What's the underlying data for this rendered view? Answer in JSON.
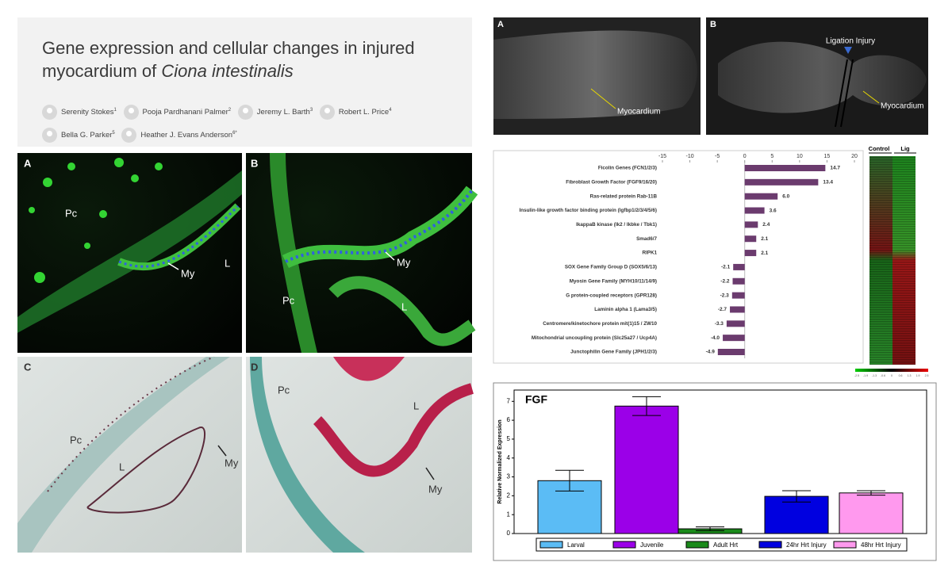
{
  "paper": {
    "title_parts": [
      "Gene expression and cellular changes in injured myocardium of ",
      "Ciona intestinalis"
    ],
    "authors": [
      {
        "name": "Serenity Stokes",
        "affiliation": "1"
      },
      {
        "name": "Pooja Pardhanani Palmer",
        "affiliation": "2"
      },
      {
        "name": "Jeremy L. Barth",
        "affiliation": "3"
      },
      {
        "name": "Robert L. Price",
        "affiliation": "4"
      },
      {
        "name": "Bella G. Parker",
        "affiliation": "5"
      },
      {
        "name": "Heather J. Evans Anderson",
        "affiliation": "6*"
      }
    ]
  },
  "micrographs": [
    {
      "panel": "A",
      "labels": [
        "Pc",
        "My",
        "L"
      ]
    },
    {
      "panel": "B",
      "labels": [
        "My",
        "Pc",
        "L"
      ]
    },
    {
      "panel": "C",
      "labels": [
        "Pc",
        "L",
        "My"
      ]
    },
    {
      "panel": "D",
      "labels": [
        "Pc",
        "L",
        "My"
      ]
    }
  ],
  "photos": [
    {
      "panel": "A",
      "labels": [
        "Myocardium"
      ]
    },
    {
      "panel": "B",
      "labels": [
        "Ligation Injury",
        "Myocardium"
      ]
    }
  ],
  "heatmap": {
    "columns": [
      "Control",
      "Lig"
    ],
    "colorbar_ticks": [
      "-2.5",
      "-1.9",
      "-1.3",
      "-0.6",
      "0",
      "0.6",
      "1.3",
      "1.9",
      "2.5"
    ]
  },
  "chart_data": [
    {
      "type": "hbar",
      "categories": [
        "Ficolin Genes (FCN1/2/3)",
        "Fibroblast Growth Factor (FGF9/16/20)",
        "Ras-related protein Rab-11B",
        "Insulin-like growth factor binding protein (Igfbp1/2/3/4/5/6)",
        "IkappaB kinase (Ik2 / Ikbke / Tbk1)",
        "Smad6/7",
        "RIPK1",
        "SOX Gene Family Group D (SOX5/6/13)",
        "Myosin Gene Family (MYH10/11/14/9)",
        "G protein-coupled receptors (GPR128)",
        "Laminin alpha 1 (Lama3/5)",
        "Centromere/kinetochore protein mit(1)15 / ZW10",
        "Mitochondrial uncoupling protein (Slc25a27 / Ucp4A)",
        "Junctophilin Gene Family (JPH1/2/3)"
      ],
      "values": [
        14.7,
        13.4,
        6.0,
        3.6,
        2.4,
        2.1,
        2.1,
        -2.1,
        -2.2,
        -2.3,
        -2.7,
        -3.3,
        -4.0,
        -4.9
      ],
      "value_labels": [
        "14.7",
        "13.4",
        "6.0",
        "3.6",
        "2.4",
        "2.1",
        "2.1",
        "-2.1",
        "-2.2",
        "-2.3",
        "-2.7",
        "-3.3",
        "-4.0",
        "-4.9"
      ],
      "color": "#6b3b6e",
      "xlim": [
        -15,
        20
      ],
      "xticks": [
        -15,
        -10,
        -5,
        0,
        5,
        10,
        15,
        20
      ]
    },
    {
      "type": "bar",
      "title": "FGF",
      "ylabel": "Relative Normalized Expression",
      "categories": [
        "Larval",
        "Juvenile",
        "Adult Hrt",
        "24hr Hrt Injury",
        "48hr Hrt Injury"
      ],
      "values": [
        2.8,
        6.75,
        0.25,
        1.97,
        2.15
      ],
      "errors": [
        0.55,
        0.5,
        0.1,
        0.3,
        0.12
      ],
      "colors": [
        "#5bbcf5",
        "#9b00e8",
        "#1a8a1a",
        "#0000e0",
        "#ff99ee"
      ],
      "ylim": [
        0,
        7.6
      ],
      "yticks": [
        0,
        1,
        2,
        3,
        4,
        5,
        6,
        7
      ]
    }
  ]
}
